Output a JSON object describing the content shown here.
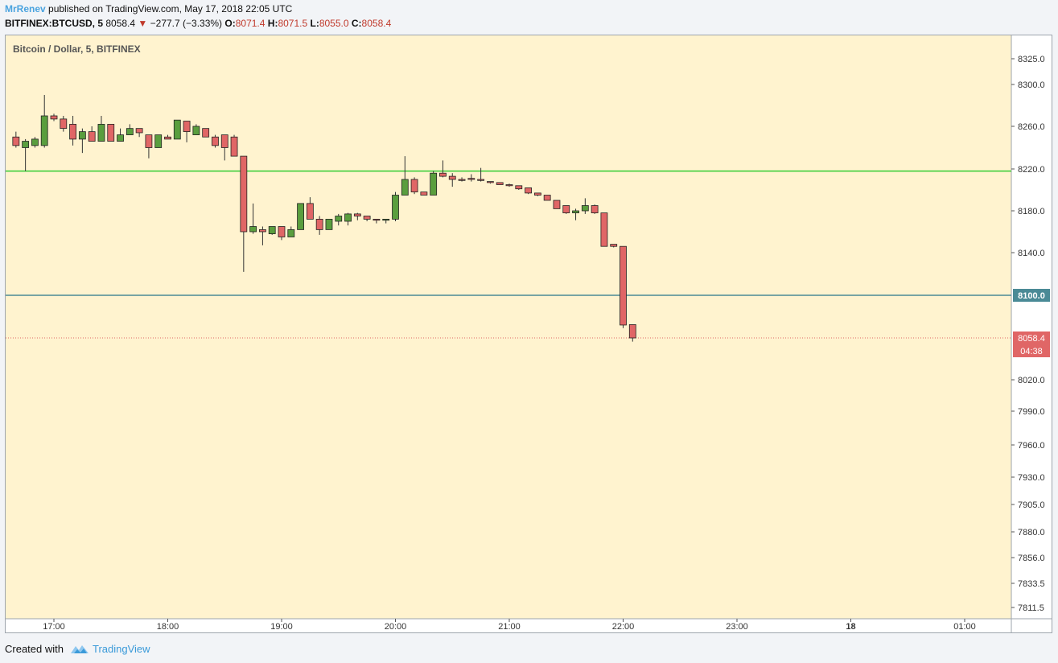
{
  "header": {
    "author": "MrRenev",
    "published": " published on TradingView.com, May 17, 2018 22:05 UTC",
    "symbol": "BITFINEX:BTCUSD, 5",
    "last": "8058.4",
    "change": "−277.7 (−3.33%)",
    "o_label": "O:",
    "o_value": "8071.4",
    "h_label": "H:",
    "h_value": "8071.5",
    "l_label": "L:",
    "l_value": "8055.0",
    "c_label": "C:",
    "c_value": "8058.4"
  },
  "chart_title": "Bitcoin / Dollar, 5, BITFINEX",
  "footer": {
    "created_with": "Created with",
    "brand": "TradingView"
  },
  "chart_data": {
    "type": "candlestick",
    "title": "Bitcoin / Dollar, 5, BITFINEX",
    "y_axis_side": "right",
    "y_ticks": [
      8325.0,
      8300.0,
      8260.0,
      8220.0,
      8180.0,
      8140.0,
      8100.0,
      8058.4,
      8020.0,
      7990.0,
      7960.0,
      7930.0,
      7905.0,
      7880.0,
      7856.0,
      7833.5,
      7811.5
    ],
    "y_tick_labels": [
      "8325.0",
      "8300.0",
      "8260.0",
      "8220.0",
      "8180.0",
      "8140.0",
      "8100.0",
      "8058.4",
      "8020.0",
      "7990.0",
      "7960.0",
      "7930.0",
      "7905.0",
      "7880.0",
      "7856.0",
      "7833.5",
      "7811.5"
    ],
    "x_ticks": [
      {
        "t": 0,
        "label": "17:00"
      },
      {
        "t": 60,
        "label": "18:00"
      },
      {
        "t": 120,
        "label": "19:00"
      },
      {
        "t": 180,
        "label": "20:00"
      },
      {
        "t": 240,
        "label": "21:00"
      },
      {
        "t": 300,
        "label": "22:00"
      },
      {
        "t": 360,
        "label": "23:00"
      },
      {
        "t": 420,
        "label": "18",
        "bold": true
      },
      {
        "t": 480,
        "label": "01:00"
      }
    ],
    "x_range_minutes": [
      -25,
      500
    ],
    "horizontal_lines": [
      {
        "price": 8218,
        "color": "#33cc33"
      },
      {
        "price": 8100,
        "color": "#4a8a96",
        "label": "8100.0"
      }
    ],
    "last_price": {
      "price": 8058.4,
      "label": "8058.4",
      "countdown": "04:38",
      "color": "#e06666"
    },
    "colors": {
      "up": "#5a9e3e",
      "down": "#e06666",
      "wick": "#333333",
      "background": "#fff3cf"
    },
    "candles": [
      {
        "t": -20,
        "o": 8250,
        "h": 8255,
        "l": 8240,
        "c": 8242
      },
      {
        "t": -15,
        "o": 8240,
        "h": 8248,
        "l": 8218,
        "c": 8246
      },
      {
        "t": -10,
        "o": 8242,
        "h": 8250,
        "l": 8240,
        "c": 8248
      },
      {
        "t": -5,
        "o": 8242,
        "h": 8290,
        "l": 8240,
        "c": 8270
      },
      {
        "t": 0,
        "o": 8270,
        "h": 8272,
        "l": 8265,
        "c": 8267
      },
      {
        "t": 5,
        "o": 8267,
        "h": 8270,
        "l": 8255,
        "c": 8258
      },
      {
        "t": 10,
        "o": 8262,
        "h": 8270,
        "l": 8242,
        "c": 8248
      },
      {
        "t": 15,
        "o": 8248,
        "h": 8258,
        "l": 8235,
        "c": 8255
      },
      {
        "t": 20,
        "o": 8255,
        "h": 8260,
        "l": 8246,
        "c": 8246
      },
      {
        "t": 25,
        "o": 8246,
        "h": 8270,
        "l": 8246,
        "c": 8262
      },
      {
        "t": 30,
        "o": 8262,
        "h": 8262,
        "l": 8246,
        "c": 8246
      },
      {
        "t": 35,
        "o": 8246,
        "h": 8258,
        "l": 8246,
        "c": 8252
      },
      {
        "t": 40,
        "o": 8252,
        "h": 8262,
        "l": 8252,
        "c": 8258
      },
      {
        "t": 45,
        "o": 8258,
        "h": 8258,
        "l": 8250,
        "c": 8254
      },
      {
        "t": 50,
        "o": 8252,
        "h": 8252,
        "l": 8230,
        "c": 8240
      },
      {
        "t": 55,
        "o": 8240,
        "h": 8252,
        "l": 8240,
        "c": 8252
      },
      {
        "t": 60,
        "o": 8250,
        "h": 8252,
        "l": 8248,
        "c": 8248
      },
      {
        "t": 65,
        "o": 8248,
        "h": 8266,
        "l": 8248,
        "c": 8266
      },
      {
        "t": 70,
        "o": 8265,
        "h": 8265,
        "l": 8245,
        "c": 8255
      },
      {
        "t": 75,
        "o": 8252,
        "h": 8262,
        "l": 8252,
        "c": 8260
      },
      {
        "t": 80,
        "o": 8258,
        "h": 8258,
        "l": 8250,
        "c": 8250
      },
      {
        "t": 85,
        "o": 8250,
        "h": 8252,
        "l": 8240,
        "c": 8242
      },
      {
        "t": 90,
        "o": 8252,
        "h": 8252,
        "l": 8228,
        "c": 8240
      },
      {
        "t": 95,
        "o": 8250,
        "h": 8252,
        "l": 8232,
        "c": 8232
      },
      {
        "t": 100,
        "o": 8232,
        "h": 8232,
        "l": 8122,
        "c": 8160
      },
      {
        "t": 105,
        "o": 8160,
        "h": 8187,
        "l": 8158,
        "c": 8165
      },
      {
        "t": 110,
        "o": 8162,
        "h": 8165,
        "l": 8147,
        "c": 8160
      },
      {
        "t": 115,
        "o": 8158,
        "h": 8165,
        "l": 8157,
        "c": 8165
      },
      {
        "t": 120,
        "o": 8165,
        "h": 8165,
        "l": 8152,
        "c": 8155
      },
      {
        "t": 125,
        "o": 8155,
        "h": 8165,
        "l": 8155,
        "c": 8162
      },
      {
        "t": 130,
        "o": 8162,
        "h": 8187,
        "l": 8162,
        "c": 8187
      },
      {
        "t": 135,
        "o": 8187,
        "h": 8193,
        "l": 8172,
        "c": 8172
      },
      {
        "t": 140,
        "o": 8172,
        "h": 8175,
        "l": 8157,
        "c": 8162
      },
      {
        "t": 145,
        "o": 8162,
        "h": 8172,
        "l": 8162,
        "c": 8172
      },
      {
        "t": 150,
        "o": 8170,
        "h": 8177,
        "l": 8166,
        "c": 8175
      },
      {
        "t": 155,
        "o": 8170,
        "h": 8178,
        "l": 8166,
        "c": 8177
      },
      {
        "t": 160,
        "o": 8177,
        "h": 8178,
        "l": 8171,
        "c": 8175
      },
      {
        "t": 165,
        "o": 8175,
        "h": 8175,
        "l": 8170,
        "c": 8172
      },
      {
        "t": 170,
        "o": 8172,
        "h": 8172,
        "l": 8168,
        "c": 8171
      },
      {
        "t": 175,
        "o": 8171,
        "h": 8172,
        "l": 8168,
        "c": 8172
      },
      {
        "t": 180,
        "o": 8172,
        "h": 8198,
        "l": 8170,
        "c": 8195
      },
      {
        "t": 185,
        "o": 8195,
        "h": 8232,
        "l": 8195,
        "c": 8210
      },
      {
        "t": 190,
        "o": 8210,
        "h": 8212,
        "l": 8196,
        "c": 8198
      },
      {
        "t": 195,
        "o": 8198,
        "h": 8198,
        "l": 8195,
        "c": 8195
      },
      {
        "t": 200,
        "o": 8195,
        "h": 8218,
        "l": 8195,
        "c": 8216
      },
      {
        "t": 205,
        "o": 8216,
        "h": 8228,
        "l": 8212,
        "c": 8213
      },
      {
        "t": 210,
        "o": 8213,
        "h": 8216,
        "l": 8203,
        "c": 8210
      },
      {
        "t": 215,
        "o": 8210,
        "h": 8212,
        "l": 8208,
        "c": 8209
      },
      {
        "t": 220,
        "o": 8211,
        "h": 8215,
        "l": 8208,
        "c": 8210
      },
      {
        "t": 225,
        "o": 8210,
        "h": 8221,
        "l": 8208,
        "c": 8209
      },
      {
        "t": 230,
        "o": 8208,
        "h": 8208,
        "l": 8206,
        "c": 8207
      },
      {
        "t": 235,
        "o": 8207,
        "h": 8207,
        "l": 8205,
        "c": 8205
      },
      {
        "t": 240,
        "o": 8205,
        "h": 8206,
        "l": 8203,
        "c": 8204
      },
      {
        "t": 245,
        "o": 8204,
        "h": 8204,
        "l": 8200,
        "c": 8201
      },
      {
        "t": 250,
        "o": 8202,
        "h": 8202,
        "l": 8196,
        "c": 8197
      },
      {
        "t": 255,
        "o": 8197,
        "h": 8197,
        "l": 8194,
        "c": 8195
      },
      {
        "t": 260,
        "o": 8195,
        "h": 8195,
        "l": 8190,
        "c": 8190
      },
      {
        "t": 265,
        "o": 8190,
        "h": 8190,
        "l": 8182,
        "c": 8182
      },
      {
        "t": 270,
        "o": 8185,
        "h": 8185,
        "l": 8177,
        "c": 8178
      },
      {
        "t": 275,
        "o": 8178,
        "h": 8182,
        "l": 8171,
        "c": 8180
      },
      {
        "t": 280,
        "o": 8180,
        "h": 8192,
        "l": 8177,
        "c": 8185
      },
      {
        "t": 285,
        "o": 8185,
        "h": 8186,
        "l": 8177,
        "c": 8178
      },
      {
        "t": 290,
        "o": 8178,
        "h": 8178,
        "l": 8146,
        "c": 8146
      },
      {
        "t": 295,
        "o": 8148,
        "h": 8148,
        "l": 8145,
        "c": 8146
      },
      {
        "t": 300,
        "o": 8146,
        "h": 8146,
        "l": 8068,
        "c": 8071
      },
      {
        "t": 305,
        "o": 8071.4,
        "h": 8071.5,
        "l": 8055.0,
        "c": 8058.4
      }
    ]
  }
}
